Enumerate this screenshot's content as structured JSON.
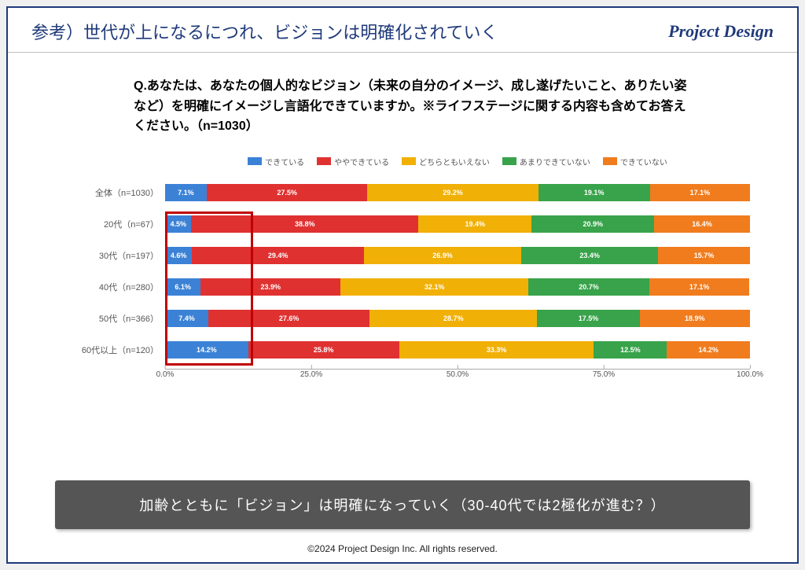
{
  "header": {
    "title": "参考）世代が上になるにつれ、ビジョンは明確化されていく",
    "logo": "Project Design"
  },
  "question": "Q.あなたは、あなたの個人的なビジョン（未来の自分のイメージ、成し遂げたいこと、ありたい姿など）を明確にイメージし言語化できていますか。※ライフステージに関する内容も含めてお答えください。（n=1030）",
  "chart": {
    "type": "stacked-bar-horizontal",
    "xlim": [
      0,
      100
    ],
    "xtick_step": 25,
    "xtick_labels": [
      "0.0%",
      "25.0%",
      "50.0%",
      "75.0%",
      "100.0%"
    ],
    "legend": [
      {
        "label": "できている",
        "color": "#3b82d6"
      },
      {
        "label": "ややできている",
        "color": "#e03131"
      },
      {
        "label": "どちらともいえない",
        "color": "#f1b005"
      },
      {
        "label": "あまりできていない",
        "color": "#38a34a"
      },
      {
        "label": "できていない",
        "color": "#f07c1e"
      }
    ],
    "rows": [
      {
        "label": "全体（n=1030）",
        "values": [
          7.1,
          27.5,
          29.2,
          19.1,
          17.1
        ]
      },
      {
        "label": "20代（n=67）",
        "values": [
          4.5,
          38.8,
          19.4,
          20.9,
          16.4
        ]
      },
      {
        "label": "30代（n=197）",
        "values": [
          4.6,
          29.4,
          26.9,
          23.4,
          15.7
        ]
      },
      {
        "label": "40代（n=280）",
        "values": [
          6.1,
          23.9,
          32.1,
          20.7,
          17.1
        ]
      },
      {
        "label": "50代（n=366）",
        "values": [
          7.4,
          27.6,
          28.7,
          17.5,
          18.9
        ]
      },
      {
        "label": "60代以上（n=120）",
        "values": [
          14.2,
          25.8,
          33.3,
          12.5,
          14.2
        ]
      }
    ],
    "highlight": {
      "row_start": 1,
      "row_end": 5,
      "x_start_pct": 0,
      "x_end_pct": 15,
      "border_color": "#c00000"
    },
    "label_fontsize": 11,
    "value_fontsize": 9,
    "background_color": "#ffffff"
  },
  "callout": "加齢とともに「ビジョン」は明確になっていく（30-40代では2極化が進む？）",
  "footer": "©2024 Project Design Inc.  All rights reserved."
}
